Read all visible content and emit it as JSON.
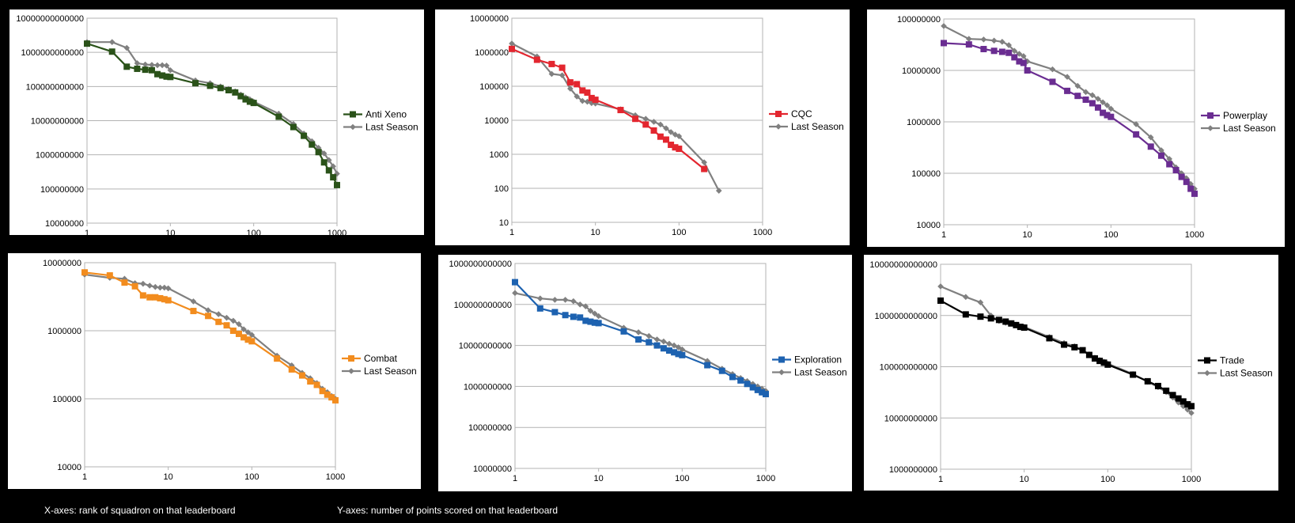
{
  "footer": {
    "x_note": "X-axes: rank of squadron on that leaderboard",
    "y_note": "Y-axes: number of points scored on that leaderboard"
  },
  "chart_data": [
    {
      "type": "line",
      "xscale": "log",
      "yscale": "log",
      "xlim": [
        1,
        1000
      ],
      "ylim": [
        10000000,
        10000000000000
      ],
      "x_ticks": [
        "1",
        "10",
        "100",
        "1000"
      ],
      "y_ticks": [
        "10000000",
        "100000000",
        "1000000000",
        "10000000000",
        "100000000000",
        "1000000000000",
        "10000000000000"
      ],
      "legend_position": "right",
      "series": [
        {
          "name": "Anti Xeno",
          "color": "#2a5219",
          "marker": "square",
          "x": [
            1,
            2,
            3,
            4,
            5,
            6,
            7,
            8,
            9,
            10,
            20,
            30,
            40,
            50,
            60,
            70,
            80,
            90,
            100,
            200,
            300,
            400,
            500,
            600,
            700,
            800,
            900,
            1000
          ],
          "y": [
            1800000000000,
            1050000000000,
            380000000000,
            330000000000,
            310000000000,
            300000000000,
            230000000000,
            210000000000,
            195000000000,
            190000000000,
            125000000000,
            105000000000,
            90000000000,
            78000000000,
            67000000000,
            52000000000,
            42000000000,
            36000000000,
            33000000000,
            13000000000,
            6500000000,
            3600000000,
            2000000000,
            1200000000,
            600000000,
            350000000,
            220000000,
            130000000
          ]
        },
        {
          "name": "Last Season",
          "color": "#808080",
          "marker": "diamond",
          "x": [
            1,
            2,
            3,
            4,
            5,
            6,
            7,
            8,
            9,
            10,
            20,
            30,
            40,
            50,
            60,
            70,
            80,
            90,
            100,
            200,
            300,
            400,
            500,
            600,
            700,
            800,
            900,
            1000
          ],
          "y": [
            2000000000000,
            2000000000000,
            1350000000000,
            480000000000,
            440000000000,
            430000000000,
            420000000000,
            420000000000,
            410000000000,
            300000000000,
            150000000000,
            125000000000,
            100000000000,
            85000000000,
            72000000000,
            58000000000,
            48000000000,
            42000000000,
            36000000000,
            16000000000,
            8000000000,
            4200000000,
            2500000000,
            1600000000,
            1100000000,
            700000000,
            460000000,
            280000000
          ]
        }
      ]
    },
    {
      "type": "line",
      "xscale": "log",
      "yscale": "log",
      "xlim": [
        1,
        1000
      ],
      "ylim": [
        10,
        10000000
      ],
      "x_ticks": [
        "1",
        "10",
        "100",
        "1000"
      ],
      "y_ticks": [
        "10",
        "100",
        "1000",
        "10000",
        "100000",
        "1000000",
        "10000000"
      ],
      "legend_position": "right",
      "series": [
        {
          "name": "CQC",
          "color": "#e3262f",
          "marker": "square",
          "x": [
            1,
            2,
            3,
            4,
            5,
            6,
            7,
            8,
            9,
            10,
            20,
            30,
            40,
            50,
            60,
            70,
            80,
            90,
            100,
            200
          ],
          "y": [
            1250000,
            600000,
            450000,
            350000,
            130000,
            115000,
            75000,
            65000,
            45000,
            40000,
            20000,
            11000,
            7500,
            5000,
            3300,
            2700,
            1900,
            1600,
            1450,
            370
          ]
        },
        {
          "name": "Last Season",
          "color": "#808080",
          "marker": "diamond",
          "x": [
            1,
            2,
            3,
            4,
            5,
            6,
            7,
            8,
            9,
            10,
            20,
            30,
            40,
            50,
            60,
            70,
            80,
            90,
            100,
            200,
            300
          ],
          "y": [
            1800000,
            750000,
            230000,
            210000,
            85000,
            50000,
            37000,
            35000,
            32000,
            31000,
            21000,
            14000,
            11000,
            9000,
            7500,
            5800,
            4500,
            3800,
            3400,
            580,
            85
          ]
        }
      ]
    },
    {
      "type": "line",
      "xscale": "log",
      "yscale": "log",
      "xlim": [
        1,
        1000
      ],
      "ylim": [
        10000,
        100000000
      ],
      "x_ticks": [
        "1",
        "10",
        "100",
        "1000"
      ],
      "y_ticks": [
        "10000",
        "100000",
        "1000000",
        "10000000",
        "100000000"
      ],
      "legend_position": "right",
      "series": [
        {
          "name": "Powerplay",
          "color": "#6a2d91",
          "marker": "square",
          "x": [
            1,
            2,
            3,
            4,
            5,
            6,
            7,
            8,
            9,
            10,
            20,
            30,
            40,
            50,
            60,
            70,
            80,
            90,
            100,
            200,
            300,
            400,
            500,
            600,
            700,
            800,
            900,
            1000
          ],
          "y": [
            34000000,
            32000000,
            26000000,
            24000000,
            23000000,
            22000000,
            18000000,
            15000000,
            14000000,
            10000000,
            6000000,
            4000000,
            3200000,
            2700000,
            2300000,
            1900000,
            1500000,
            1350000,
            1250000,
            570000,
            330000,
            220000,
            150000,
            115000,
            85000,
            68000,
            50000,
            40000
          ]
        },
        {
          "name": "Last Season",
          "color": "#808080",
          "marker": "diamond",
          "x": [
            1,
            2,
            3,
            4,
            5,
            6,
            7,
            8,
            9,
            10,
            20,
            30,
            40,
            50,
            60,
            70,
            80,
            90,
            100,
            200,
            300,
            400,
            500,
            600,
            700,
            800,
            900,
            1000
          ],
          "y": [
            73000000,
            41000000,
            40000000,
            38000000,
            36000000,
            31000000,
            24000000,
            21000000,
            19000000,
            15000000,
            10500000,
            7500000,
            5000000,
            3800000,
            3300000,
            2800000,
            2400000,
            2100000,
            1800000,
            900000,
            500000,
            280000,
            190000,
            130000,
            100000,
            80000,
            62000,
            50000
          ]
        }
      ]
    },
    {
      "type": "line",
      "xscale": "log",
      "yscale": "log",
      "xlim": [
        1,
        1000
      ],
      "ylim": [
        10000,
        10000000
      ],
      "x_ticks": [
        "1",
        "10",
        "100",
        "1000"
      ],
      "y_ticks": [
        "10000",
        "100000",
        "1000000",
        "10000000"
      ],
      "legend_position": "right",
      "series": [
        {
          "name": "Combat",
          "color": "#f28c1e",
          "marker": "square",
          "x": [
            1,
            2,
            3,
            4,
            5,
            6,
            7,
            8,
            9,
            10,
            20,
            30,
            40,
            50,
            60,
            70,
            80,
            90,
            100,
            200,
            300,
            400,
            500,
            600,
            700,
            800,
            900,
            1000
          ],
          "y": [
            7200000,
            6500000,
            5100000,
            4500000,
            3300000,
            3100000,
            3100000,
            3000000,
            2900000,
            2800000,
            1950000,
            1650000,
            1350000,
            1200000,
            1000000,
            900000,
            800000,
            740000,
            700000,
            390000,
            270000,
            220000,
            180000,
            160000,
            130000,
            115000,
            105000,
            95000
          ]
        },
        {
          "name": "Last Season",
          "color": "#808080",
          "marker": "diamond",
          "x": [
            1,
            2,
            3,
            4,
            5,
            6,
            7,
            8,
            9,
            10,
            20,
            30,
            40,
            50,
            60,
            70,
            80,
            90,
            100,
            200,
            300,
            400,
            500,
            600,
            700,
            800,
            900,
            1000
          ],
          "y": [
            6700000,
            6000000,
            5800000,
            5000000,
            4900000,
            4600000,
            4400000,
            4300000,
            4300000,
            4200000,
            2700000,
            2000000,
            1750000,
            1550000,
            1400000,
            1250000,
            1050000,
            950000,
            870000,
            430000,
            310000,
            240000,
            200000,
            170000,
            140000,
            125000,
            110000,
            100000
          ]
        }
      ]
    },
    {
      "type": "line",
      "xscale": "log",
      "yscale": "log",
      "xlim": [
        1,
        1000
      ],
      "ylim": [
        10000000,
        1000000000000
      ],
      "x_ticks": [
        "1",
        "10",
        "100",
        "1000"
      ],
      "y_ticks": [
        "10000000",
        "100000000",
        "1000000000",
        "10000000000",
        "100000000000",
        "1000000000000"
      ],
      "legend_position": "right",
      "series": [
        {
          "name": "Exploration",
          "color": "#1d62b0",
          "marker": "square",
          "x": [
            1,
            2,
            3,
            4,
            5,
            6,
            7,
            8,
            9,
            10,
            20,
            30,
            40,
            50,
            60,
            70,
            80,
            90,
            100,
            200,
            300,
            400,
            500,
            600,
            700,
            800,
            900,
            1000
          ],
          "y": [
            350000000000,
            80000000000,
            65000000000,
            55000000000,
            50000000000,
            48000000000,
            40000000000,
            38000000000,
            36000000000,
            35000000000,
            22000000000,
            14000000000,
            12000000000,
            10000000000,
            8500000000,
            7500000000,
            6800000000,
            6200000000,
            5800000000,
            3300000000,
            2400000000,
            1700000000,
            1400000000,
            1150000000,
            950000000,
            820000000,
            720000000,
            650000000
          ]
        },
        {
          "name": "Last Season",
          "color": "#808080",
          "marker": "diamond",
          "x": [
            1,
            2,
            3,
            4,
            5,
            6,
            7,
            8,
            9,
            10,
            20,
            30,
            40,
            50,
            60,
            70,
            80,
            90,
            100,
            200,
            300,
            400,
            500,
            600,
            700,
            800,
            900,
            1000
          ],
          "y": [
            190000000000,
            140000000000,
            130000000000,
            130000000000,
            120000000000,
            100000000000,
            90000000000,
            70000000000,
            60000000000,
            52000000000,
            27000000000,
            21000000000,
            17000000000,
            14000000000,
            12500000000,
            11000000000,
            10000000000,
            9000000000,
            8000000000,
            4200000000,
            2700000000,
            2000000000,
            1600000000,
            1350000000,
            1150000000,
            1000000000,
            880000000,
            780000000
          ]
        }
      ]
    },
    {
      "type": "line",
      "xscale": "log",
      "yscale": "log",
      "xlim": [
        1,
        1000
      ],
      "ylim": [
        1000000000,
        10000000000000
      ],
      "x_ticks": [
        "1",
        "10",
        "100",
        "1000"
      ],
      "y_ticks": [
        "1000000000",
        "10000000000",
        "100000000000",
        "1000000000000",
        "10000000000000"
      ],
      "legend_position": "right",
      "series": [
        {
          "name": "Trade",
          "color": "#000000",
          "marker": "square",
          "x": [
            1,
            2,
            3,
            4,
            5,
            6,
            7,
            8,
            9,
            10,
            20,
            30,
            40,
            50,
            60,
            70,
            80,
            90,
            100,
            200,
            300,
            400,
            500,
            600,
            700,
            800,
            900,
            1000
          ],
          "y": [
            1950000000000,
            1050000000000,
            950000000000,
            880000000000,
            820000000000,
            760000000000,
            700000000000,
            650000000000,
            600000000000,
            580000000000,
            360000000000,
            270000000000,
            240000000000,
            210000000000,
            170000000000,
            145000000000,
            130000000000,
            120000000000,
            110000000000,
            70000000000,
            52000000000,
            42000000000,
            34000000000,
            28000000000,
            24000000000,
            21000000000,
            18500000000,
            17000000000
          ]
        },
        {
          "name": "Last Season",
          "color": "#808080",
          "marker": "diamond",
          "x": [
            1,
            2,
            3,
            4,
            5,
            6,
            7,
            8,
            9,
            10,
            20,
            30,
            40,
            50,
            60,
            70,
            80,
            90,
            100,
            200,
            300,
            400,
            500,
            600,
            700,
            800,
            900,
            1000
          ],
          "y": [
            3700000000000,
            2300000000000,
            1800000000000,
            1000000000000,
            780000000000,
            720000000000,
            700000000000,
            660000000000,
            610000000000,
            600000000000,
            380000000000,
            290000000000,
            250000000000,
            210000000000,
            175000000000,
            150000000000,
            135000000000,
            125000000000,
            115000000000,
            72000000000,
            51000000000,
            40000000000,
            32000000000,
            25000000000,
            20000000000,
            17000000000,
            14500000000,
            12500000000
          ]
        }
      ]
    }
  ]
}
